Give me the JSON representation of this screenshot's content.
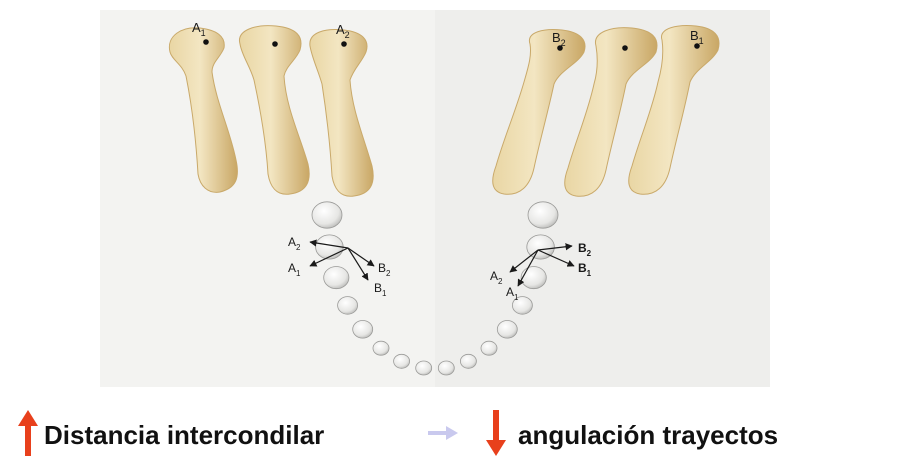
{
  "figure": {
    "left_condyles": [
      {
        "point": "A",
        "sub": "1"
      },
      {
        "point": "",
        "sub": ""
      },
      {
        "point": "A",
        "sub": "2"
      }
    ],
    "right_condyles": [
      {
        "point": "B",
        "sub": "2"
      },
      {
        "point": "",
        "sub": ""
      },
      {
        "point": "B",
        "sub": "1"
      }
    ],
    "left_vectors": [
      {
        "point": "A",
        "sub": "2"
      },
      {
        "point": "A",
        "sub": "1"
      },
      {
        "point": "B",
        "sub": "2"
      },
      {
        "point": "B",
        "sub": "1"
      }
    ],
    "right_vectors": [
      {
        "point": "B",
        "sub": "2"
      },
      {
        "point": "B",
        "sub": "1"
      },
      {
        "point": "A",
        "sub": "2"
      },
      {
        "point": "A",
        "sub": "1"
      }
    ]
  },
  "caption": {
    "left_text": "Distancia intercondilar",
    "right_text": "angulación trayectos",
    "colors": {
      "increase_arrow": "#e8401c",
      "decrease_arrow": "#e8401c",
      "relation_arrow": "#c9c9ee"
    }
  }
}
